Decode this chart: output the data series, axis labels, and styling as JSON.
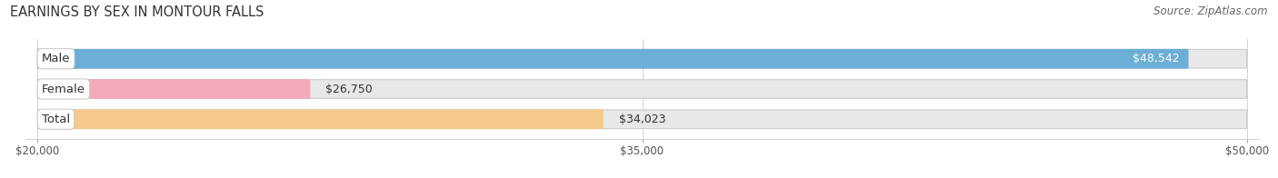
{
  "title": "EARNINGS BY SEX IN MONTOUR FALLS",
  "source": "Source: ZipAtlas.com",
  "categories": [
    "Male",
    "Female",
    "Total"
  ],
  "values": [
    48542,
    26750,
    34023
  ],
  "labels": [
    "$48,542",
    "$26,750",
    "$34,023"
  ],
  "bar_colors": [
    "#6baed6",
    "#f4a9bb",
    "#f5c98a"
  ],
  "xmin": 20000,
  "xmax": 50000,
  "xticks": [
    20000,
    35000,
    50000
  ],
  "xtick_labels": [
    "$20,000",
    "$35,000",
    "$50,000"
  ],
  "background_color": "#ffffff",
  "bar_bg_color": "#e8e8e8",
  "title_fontsize": 10.5,
  "source_fontsize": 8.5,
  "label_fontsize": 9.5,
  "value_fontsize": 9,
  "tick_fontsize": 8.5
}
